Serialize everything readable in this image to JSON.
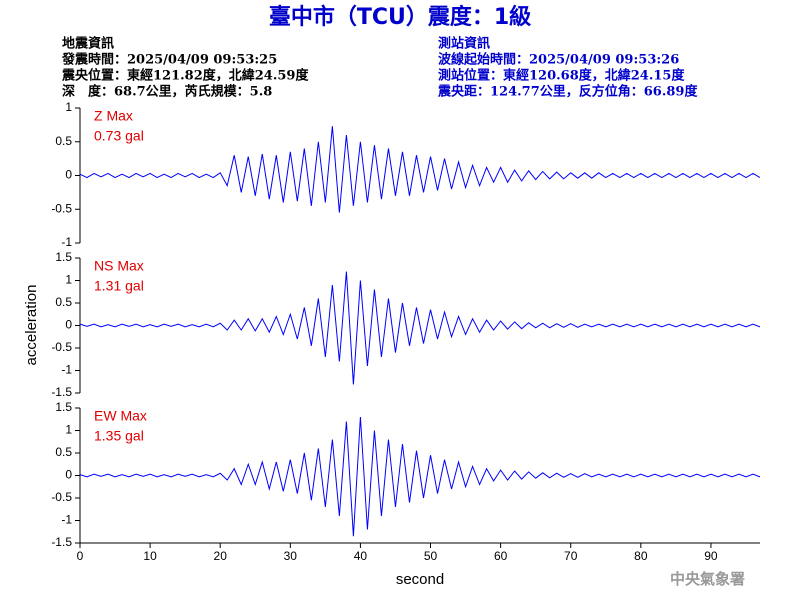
{
  "header": {
    "title": "臺中市（TCU）震度：1級",
    "left_info": [
      "地震資訊",
      "發震時間：2025/04/09 09:53:25",
      "震央位置：東經121.82度，北緯24.59度",
      "深　度：68.7公里，芮氏規模：5.8"
    ],
    "right_info": [
      "測站資訊",
      "波線起始時間：2025/04/09 09:53:26",
      "測站位置：東經120.68度，北緯24.15度",
      "震央距：124.77公里，反方位角：66.89度"
    ]
  },
  "y_label": "acceleration",
  "agency": "中央氣象署",
  "chart_data": [
    {
      "type": "line",
      "annotations": [
        "Z Max",
        "0.73 gal"
      ],
      "color": "#0000ff",
      "xlim": [
        0,
        97
      ],
      "ylim": [
        -1,
        1
      ],
      "yticks": [
        -1,
        -0.5,
        0,
        0.5,
        1
      ],
      "x": [
        0,
        1,
        2,
        3,
        4,
        5,
        6,
        7,
        8,
        9,
        10,
        11,
        12,
        13,
        14,
        15,
        16,
        17,
        18,
        19,
        20,
        21,
        22,
        23,
        24,
        25,
        26,
        27,
        28,
        29,
        30,
        31,
        32,
        33,
        34,
        35,
        36,
        37,
        38,
        39,
        40,
        41,
        42,
        43,
        44,
        45,
        46,
        47,
        48,
        49,
        50,
        51,
        52,
        53,
        54,
        55,
        56,
        57,
        58,
        59,
        60,
        61,
        62,
        63,
        64,
        65,
        66,
        67,
        68,
        69,
        70,
        71,
        72,
        73,
        74,
        75,
        76,
        77,
        78,
        79,
        80,
        81,
        82,
        83,
        84,
        85,
        86,
        87,
        88,
        89,
        90,
        91,
        92,
        93,
        94,
        95,
        96,
        97
      ],
      "values": [
        0.02,
        -0.03,
        0.03,
        -0.02,
        0.03,
        -0.03,
        0.02,
        -0.03,
        0.03,
        -0.02,
        0.03,
        -0.03,
        0.02,
        -0.03,
        0.03,
        -0.02,
        0.03,
        -0.03,
        0.02,
        -0.03,
        0.04,
        -0.15,
        0.3,
        -0.25,
        0.28,
        -0.3,
        0.32,
        -0.35,
        0.3,
        -0.4,
        0.35,
        -0.38,
        0.4,
        -0.45,
        0.5,
        -0.4,
        0.73,
        -0.55,
        0.6,
        -0.45,
        0.5,
        -0.4,
        0.45,
        -0.35,
        0.4,
        -0.3,
        0.35,
        -0.3,
        0.3,
        -0.25,
        0.28,
        -0.22,
        0.25,
        -0.2,
        0.2,
        -0.18,
        0.15,
        -0.15,
        0.12,
        -0.1,
        0.12,
        -0.1,
        0.08,
        -0.08,
        0.07,
        -0.06,
        0.06,
        -0.05,
        0.05,
        -0.05,
        0.04,
        -0.04,
        0.04,
        -0.04,
        0.04,
        -0.03,
        0.03,
        -0.03,
        0.03,
        -0.03,
        0.03,
        -0.03,
        0.03,
        -0.03,
        0.03,
        -0.03,
        0.03,
        -0.03,
        0.03,
        -0.03,
        0.03,
        -0.03,
        0.03,
        -0.03,
        0.03,
        -0.03,
        0.03,
        -0.03
      ]
    },
    {
      "type": "line",
      "annotations": [
        "NS Max",
        "1.31 gal"
      ],
      "color": "#0000ff",
      "xlim": [
        0,
        97
      ],
      "ylim": [
        -1.5,
        1.5
      ],
      "yticks": [
        -1.5,
        -1,
        -0.5,
        0,
        0.5,
        1,
        1.5
      ],
      "x": [
        0,
        1,
        2,
        3,
        4,
        5,
        6,
        7,
        8,
        9,
        10,
        11,
        12,
        13,
        14,
        15,
        16,
        17,
        18,
        19,
        20,
        21,
        22,
        23,
        24,
        25,
        26,
        27,
        28,
        29,
        30,
        31,
        32,
        33,
        34,
        35,
        36,
        37,
        38,
        39,
        40,
        41,
        42,
        43,
        44,
        45,
        46,
        47,
        48,
        49,
        50,
        51,
        52,
        53,
        54,
        55,
        56,
        57,
        58,
        59,
        60,
        61,
        62,
        63,
        64,
        65,
        66,
        67,
        68,
        69,
        70,
        71,
        72,
        73,
        74,
        75,
        76,
        77,
        78,
        79,
        80,
        81,
        82,
        83,
        84,
        85,
        86,
        87,
        88,
        89,
        90,
        91,
        92,
        93,
        94,
        95,
        96,
        97
      ],
      "values": [
        0.03,
        -0.02,
        0.03,
        -0.03,
        0.02,
        -0.03,
        0.03,
        -0.02,
        0.03,
        -0.03,
        0.02,
        -0.03,
        0.03,
        -0.02,
        0.03,
        -0.03,
        0.02,
        -0.03,
        0.03,
        -0.03,
        0.05,
        -0.1,
        0.12,
        -0.1,
        0.15,
        -0.12,
        0.15,
        -0.15,
        0.2,
        -0.2,
        0.25,
        -0.3,
        0.4,
        -0.45,
        0.6,
        -0.7,
        0.9,
        -0.8,
        1.2,
        -1.31,
        1.0,
        -0.9,
        0.8,
        -0.7,
        0.6,
        -0.6,
        0.5,
        -0.45,
        0.4,
        -0.4,
        0.35,
        -0.3,
        0.3,
        -0.25,
        0.2,
        -0.2,
        0.15,
        -0.15,
        0.12,
        -0.1,
        0.1,
        -0.08,
        0.08,
        -0.07,
        0.06,
        -0.05,
        0.05,
        -0.05,
        0.04,
        -0.04,
        0.04,
        -0.04,
        0.03,
        -0.03,
        0.03,
        -0.03,
        0.03,
        -0.03,
        0.03,
        -0.03,
        0.03,
        -0.03,
        0.03,
        -0.03,
        0.03,
        -0.03,
        0.03,
        -0.03,
        0.03,
        -0.03,
        0.03,
        -0.03,
        0.03,
        -0.03,
        0.03,
        -0.03,
        0.03,
        -0.03
      ]
    },
    {
      "type": "line",
      "annotations": [
        "EW Max",
        "1.35 gal"
      ],
      "color": "#0000ff",
      "xlim": [
        0,
        97
      ],
      "ylim": [
        -1.5,
        1.5
      ],
      "yticks": [
        -1.5,
        -1,
        -0.5,
        0,
        0.5,
        1,
        1.5
      ],
      "xticks": [
        0,
        10,
        20,
        30,
        40,
        50,
        60,
        70,
        80,
        90
      ],
      "x_label": "second",
      "x": [
        0,
        1,
        2,
        3,
        4,
        5,
        6,
        7,
        8,
        9,
        10,
        11,
        12,
        13,
        14,
        15,
        16,
        17,
        18,
        19,
        20,
        21,
        22,
        23,
        24,
        25,
        26,
        27,
        28,
        29,
        30,
        31,
        32,
        33,
        34,
        35,
        36,
        37,
        38,
        39,
        40,
        41,
        42,
        43,
        44,
        45,
        46,
        47,
        48,
        49,
        50,
        51,
        52,
        53,
        54,
        55,
        56,
        57,
        58,
        59,
        60,
        61,
        62,
        63,
        64,
        65,
        66,
        67,
        68,
        69,
        70,
        71,
        72,
        73,
        74,
        75,
        76,
        77,
        78,
        79,
        80,
        81,
        82,
        83,
        84,
        85,
        86,
        87,
        88,
        89,
        90,
        91,
        92,
        93,
        94,
        95,
        96,
        97
      ],
      "values": [
        0.02,
        -0.03,
        0.03,
        -0.02,
        0.03,
        -0.03,
        0.02,
        -0.03,
        0.03,
        -0.02,
        0.03,
        -0.03,
        0.02,
        -0.03,
        0.03,
        -0.02,
        0.03,
        -0.03,
        0.02,
        -0.03,
        0.05,
        -0.1,
        0.15,
        -0.2,
        0.25,
        -0.2,
        0.3,
        -0.3,
        0.3,
        -0.35,
        0.35,
        -0.4,
        0.5,
        -0.55,
        0.6,
        -0.7,
        0.8,
        -0.9,
        1.2,
        -1.35,
        1.3,
        -1.2,
        1.0,
        -0.9,
        0.8,
        -0.7,
        0.7,
        -0.6,
        0.55,
        -0.5,
        0.45,
        -0.4,
        0.35,
        -0.3,
        0.3,
        -0.25,
        0.2,
        -0.2,
        0.15,
        -0.12,
        0.12,
        -0.1,
        0.1,
        -0.08,
        0.08,
        -0.06,
        0.06,
        -0.05,
        0.05,
        -0.04,
        0.04,
        -0.04,
        0.04,
        -0.03,
        0.03,
        -0.03,
        0.03,
        -0.03,
        0.03,
        -0.03,
        0.03,
        -0.03,
        0.03,
        -0.03,
        0.03,
        -0.03,
        0.03,
        -0.03,
        0.03,
        -0.03,
        0.03,
        -0.03,
        0.03,
        -0.03,
        0.03,
        -0.03,
        0.03,
        -0.03
      ]
    }
  ]
}
